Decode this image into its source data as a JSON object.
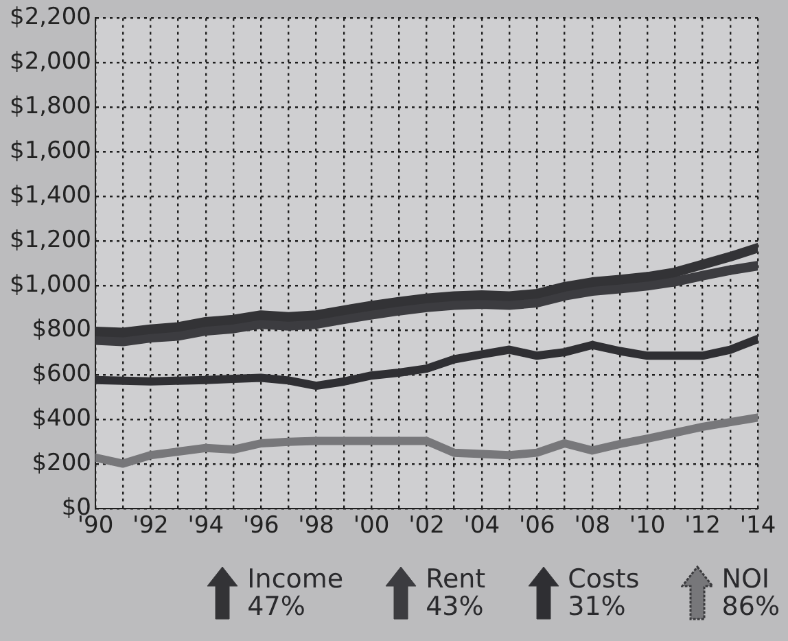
{
  "chart_data": {
    "type": "line",
    "x": [
      1990,
      1991,
      1992,
      1993,
      1994,
      1995,
      1996,
      1997,
      1998,
      1999,
      2000,
      2001,
      2002,
      2003,
      2004,
      2005,
      2006,
      2007,
      2008,
      2009,
      2010,
      2011,
      2012,
      2013,
      2014
    ],
    "series": [
      {
        "name": "Income",
        "color": "#333336",
        "values": [
          795,
          790,
          805,
          815,
          838,
          848,
          868,
          860,
          868,
          890,
          910,
          928,
          943,
          953,
          958,
          953,
          964,
          995,
          1016,
          1027,
          1040,
          1060,
          1095,
          1130,
          1170
        ]
      },
      {
        "name": "Rent",
        "color": "#3c3c40",
        "values": [
          756,
          750,
          767,
          775,
          798,
          808,
          828,
          820,
          828,
          850,
          870,
          888,
          903,
          913,
          918,
          913,
          924,
          955,
          976,
          987,
          1000,
          1018,
          1045,
          1070,
          1090
        ]
      },
      {
        "name": "Costs",
        "color": "#2f2f33",
        "values": [
          577,
          574,
          571,
          574,
          577,
          582,
          587,
          575,
          551,
          570,
          597,
          610,
          628,
          670,
          692,
          713,
          686,
          702,
          734,
          707,
          686,
          686,
          686,
          713,
          761
        ]
      },
      {
        "name": "NOI",
        "color": "#77777a",
        "values": [
          229,
          202,
          240,
          256,
          272,
          265,
          293,
          300,
          304,
          304,
          304,
          304,
          304,
          251,
          245,
          240,
          251,
          293,
          261,
          290,
          314,
          340,
          367,
          388,
          409
        ]
      }
    ],
    "xlim": [
      1990,
      2014
    ],
    "xticks": [
      {
        "value": 1990,
        "label": "'90"
      },
      {
        "value": 1991,
        "label": null
      },
      {
        "value": 1992,
        "label": "'92"
      },
      {
        "value": 1993,
        "label": null
      },
      {
        "value": 1994,
        "label": "'94"
      },
      {
        "value": 1995,
        "label": null
      },
      {
        "value": 1996,
        "label": "'96"
      },
      {
        "value": 1997,
        "label": null
      },
      {
        "value": 1998,
        "label": "'98"
      },
      {
        "value": 1999,
        "label": null
      },
      {
        "value": 2000,
        "label": "'00"
      },
      {
        "value": 2001,
        "label": null
      },
      {
        "value": 2002,
        "label": "'02"
      },
      {
        "value": 2003,
        "label": null
      },
      {
        "value": 2004,
        "label": "'04"
      },
      {
        "value": 2005,
        "label": null
      },
      {
        "value": 2006,
        "label": "'06"
      },
      {
        "value": 2007,
        "label": null
      },
      {
        "value": 2008,
        "label": "'08"
      },
      {
        "value": 2009,
        "label": null
      },
      {
        "value": 2010,
        "label": "'10"
      },
      {
        "value": 2011,
        "label": null
      },
      {
        "value": 2012,
        "label": "'12"
      },
      {
        "value": 2013,
        "label": null
      },
      {
        "value": 2014,
        "label": "'14"
      }
    ],
    "ylim": [
      0,
      2200
    ],
    "yticks": [
      {
        "value": 0,
        "label": "$0"
      },
      {
        "value": 200,
        "label": "$200"
      },
      {
        "value": 400,
        "label": "$400"
      },
      {
        "value": 600,
        "label": "$600"
      },
      {
        "value": 800,
        "label": "$800"
      },
      {
        "value": 1000,
        "label": "$1,000"
      },
      {
        "value": 1200,
        "label": "$1,200"
      },
      {
        "value": 1400,
        "label": "$1,400"
      },
      {
        "value": 1600,
        "label": "$1,600"
      },
      {
        "value": 1800,
        "label": "$1,800"
      },
      {
        "value": 2000,
        "label": "$2,000"
      },
      {
        "value": 2200,
        "label": "$2,200"
      }
    ],
    "annotations": [
      "47%",
      "43%",
      "31%",
      "86%"
    ],
    "grid": true,
    "legend": "bottom",
    "marker": "none",
    "line_style": "solid"
  }
}
